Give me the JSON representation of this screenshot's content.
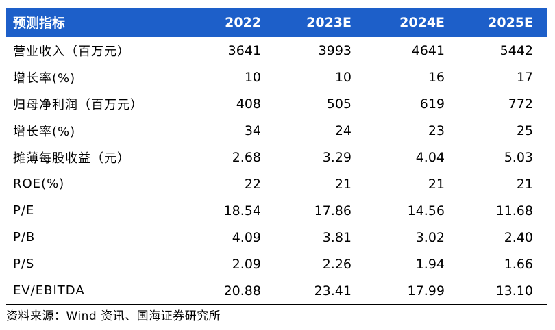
{
  "header": [
    "预测指标",
    "2022",
    "2023E",
    "2024E",
    "2025E"
  ],
  "rows": [
    [
      "营业收入（百万元）",
      "3641",
      "3993",
      "4641",
      "5442"
    ],
    [
      "增长率(%)",
      "10",
      "10",
      "16",
      "17"
    ],
    [
      "归母净利润（百万元）",
      "408",
      "505",
      "619",
      "772"
    ],
    [
      "增长率(%)",
      "34",
      "24",
      "23",
      "25"
    ],
    [
      "摊薄每股收益（元）",
      "2.68",
      "3.29",
      "4.04",
      "5.03"
    ],
    [
      "ROE(%)",
      "22",
      "21",
      "21",
      "21"
    ],
    [
      "P/E",
      "18.54",
      "17.86",
      "14.56",
      "11.68"
    ],
    [
      "P/B",
      "4.09",
      "3.81",
      "3.02",
      "2.40"
    ],
    [
      "P/S",
      "2.09",
      "2.26",
      "1.94",
      "1.66"
    ],
    [
      "EV/EBITDA",
      "20.88",
      "23.41",
      "17.99",
      "13.10"
    ]
  ],
  "source_note": "资料来源：Wind 资讯、国海证券研究所",
  "colors": {
    "header_bg": "#1d5fc9",
    "header_text": "#ffffff"
  }
}
